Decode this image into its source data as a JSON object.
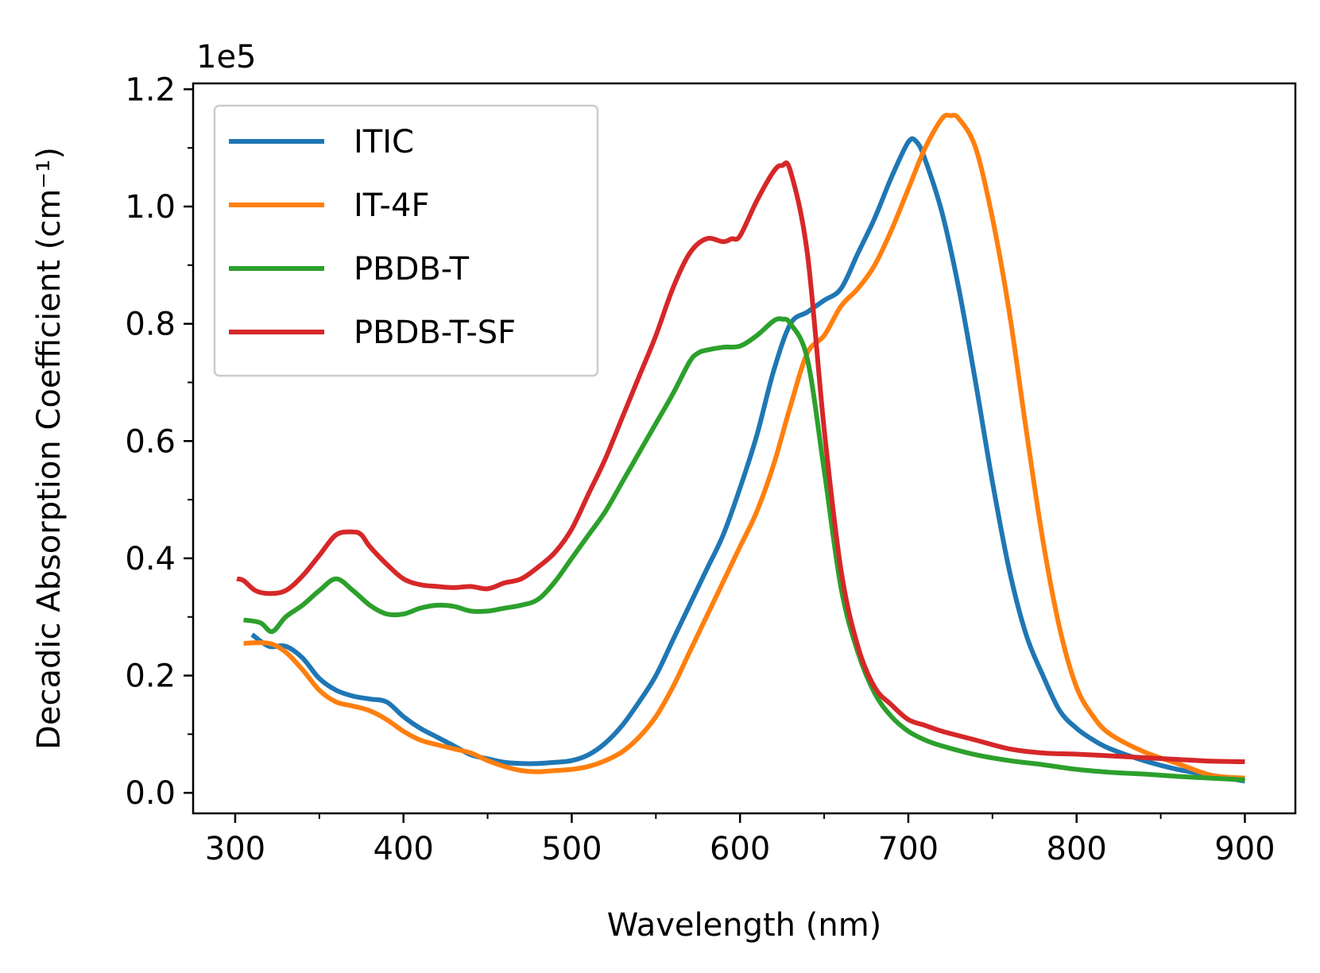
{
  "chart_data": {
    "type": "line",
    "title": "",
    "xlabel": "Wavelength (nm)",
    "ylabel": "Decadic Absorption Coefficient (cm⁻¹)",
    "y_offset_label": "1e5",
    "y_multiplier": 100000,
    "xlim": [
      275,
      930
    ],
    "ylim": [
      -0.035,
      1.21
    ],
    "x_ticks": [
      300,
      400,
      500,
      600,
      700,
      800,
      900
    ],
    "x_tick_labels": [
      "300",
      "400",
      "500",
      "600",
      "700",
      "800",
      "900"
    ],
    "x_minor_ticks": [
      350,
      450,
      550,
      650,
      750,
      850
    ],
    "y_ticks": [
      0.0,
      0.2,
      0.4,
      0.6,
      0.8,
      1.0,
      1.2
    ],
    "y_tick_labels": [
      "0.0",
      "0.2",
      "0.4",
      "0.6",
      "0.8",
      "1.0",
      "1.2"
    ],
    "y_minor_ticks": [
      0.1,
      0.3,
      0.5,
      0.7,
      0.9,
      1.1
    ],
    "grid": false,
    "legend_position": "top-left",
    "series": [
      {
        "name": "ITIC",
        "color": "#1f77b4",
        "x": [
          310,
          320,
          330,
          340,
          350,
          360,
          370,
          380,
          390,
          400,
          410,
          420,
          430,
          440,
          450,
          460,
          470,
          480,
          490,
          500,
          510,
          520,
          530,
          540,
          550,
          560,
          570,
          580,
          590,
          600,
          610,
          620,
          630,
          640,
          650,
          660,
          670,
          680,
          690,
          700,
          705,
          710,
          720,
          730,
          740,
          750,
          760,
          770,
          780,
          790,
          800,
          810,
          820,
          840,
          860,
          880,
          900
        ],
        "y": [
          0.27,
          0.25,
          0.25,
          0.23,
          0.195,
          0.175,
          0.165,
          0.16,
          0.155,
          0.13,
          0.11,
          0.095,
          0.08,
          0.065,
          0.058,
          0.052,
          0.05,
          0.05,
          0.052,
          0.055,
          0.065,
          0.085,
          0.115,
          0.155,
          0.2,
          0.26,
          0.32,
          0.38,
          0.44,
          0.52,
          0.61,
          0.72,
          0.8,
          0.82,
          0.84,
          0.86,
          0.92,
          0.98,
          1.05,
          1.11,
          1.11,
          1.08,
          0.99,
          0.86,
          0.7,
          0.53,
          0.38,
          0.27,
          0.2,
          0.14,
          0.11,
          0.09,
          0.075,
          0.055,
          0.04,
          0.03,
          0.02
        ]
      },
      {
        "name": "IT-4F",
        "color": "#ff7f0e",
        "x": [
          305,
          320,
          330,
          340,
          350,
          360,
          370,
          380,
          390,
          400,
          410,
          420,
          430,
          440,
          450,
          460,
          470,
          480,
          490,
          500,
          510,
          520,
          530,
          540,
          550,
          560,
          570,
          580,
          590,
          600,
          610,
          620,
          630,
          640,
          650,
          660,
          670,
          680,
          690,
          700,
          710,
          720,
          725,
          730,
          740,
          750,
          760,
          770,
          780,
          790,
          800,
          810,
          820,
          840,
          860,
          880,
          900
        ],
        "y": [
          0.255,
          0.255,
          0.24,
          0.21,
          0.175,
          0.155,
          0.148,
          0.14,
          0.125,
          0.105,
          0.09,
          0.082,
          0.075,
          0.068,
          0.055,
          0.045,
          0.038,
          0.036,
          0.038,
          0.04,
          0.045,
          0.055,
          0.07,
          0.095,
          0.13,
          0.18,
          0.24,
          0.3,
          0.36,
          0.42,
          0.48,
          0.56,
          0.66,
          0.75,
          0.78,
          0.83,
          0.86,
          0.9,
          0.96,
          1.03,
          1.1,
          1.15,
          1.155,
          1.15,
          1.1,
          0.98,
          0.82,
          0.62,
          0.43,
          0.28,
          0.18,
          0.13,
          0.1,
          0.07,
          0.05,
          0.03,
          0.025
        ]
      },
      {
        "name": "PBDB-T",
        "color": "#2ca02c",
        "x": [
          305,
          315,
          322,
          330,
          340,
          350,
          360,
          370,
          380,
          390,
          400,
          410,
          420,
          430,
          440,
          450,
          460,
          470,
          480,
          490,
          500,
          510,
          520,
          530,
          540,
          550,
          560,
          570,
          575,
          580,
          590,
          600,
          610,
          620,
          625,
          630,
          640,
          650,
          660,
          670,
          680,
          690,
          700,
          710,
          720,
          740,
          760,
          780,
          800,
          820,
          840,
          860,
          880,
          900
        ],
        "y": [
          0.295,
          0.29,
          0.275,
          0.3,
          0.32,
          0.345,
          0.365,
          0.345,
          0.32,
          0.305,
          0.305,
          0.315,
          0.32,
          0.318,
          0.31,
          0.31,
          0.315,
          0.32,
          0.33,
          0.36,
          0.4,
          0.44,
          0.48,
          0.53,
          0.58,
          0.63,
          0.68,
          0.735,
          0.75,
          0.755,
          0.76,
          0.762,
          0.78,
          0.805,
          0.808,
          0.8,
          0.74,
          0.55,
          0.35,
          0.24,
          0.17,
          0.13,
          0.105,
          0.09,
          0.08,
          0.065,
          0.055,
          0.048,
          0.04,
          0.035,
          0.032,
          0.028,
          0.025,
          0.022
        ]
      },
      {
        "name": "PBDB-T-SF",
        "color": "#d62728",
        "x": [
          301,
          305,
          312,
          320,
          330,
          340,
          350,
          360,
          370,
          375,
          380,
          390,
          400,
          410,
          420,
          430,
          440,
          450,
          460,
          470,
          480,
          490,
          500,
          510,
          520,
          530,
          540,
          550,
          560,
          570,
          580,
          590,
          595,
          600,
          610,
          620,
          625,
          630,
          640,
          650,
          660,
          670,
          680,
          690,
          700,
          710,
          720,
          740,
          760,
          780,
          800,
          820,
          840,
          860,
          880,
          900
        ],
        "y": [
          0.365,
          0.362,
          0.345,
          0.34,
          0.345,
          0.37,
          0.405,
          0.44,
          0.445,
          0.44,
          0.42,
          0.39,
          0.365,
          0.355,
          0.352,
          0.35,
          0.352,
          0.348,
          0.358,
          0.365,
          0.385,
          0.41,
          0.45,
          0.51,
          0.57,
          0.64,
          0.71,
          0.78,
          0.86,
          0.92,
          0.945,
          0.94,
          0.945,
          0.95,
          1.01,
          1.06,
          1.07,
          1.06,
          0.92,
          0.62,
          0.38,
          0.25,
          0.18,
          0.15,
          0.125,
          0.115,
          0.105,
          0.09,
          0.075,
          0.068,
          0.066,
          0.063,
          0.06,
          0.057,
          0.054,
          0.053
        ]
      }
    ]
  }
}
